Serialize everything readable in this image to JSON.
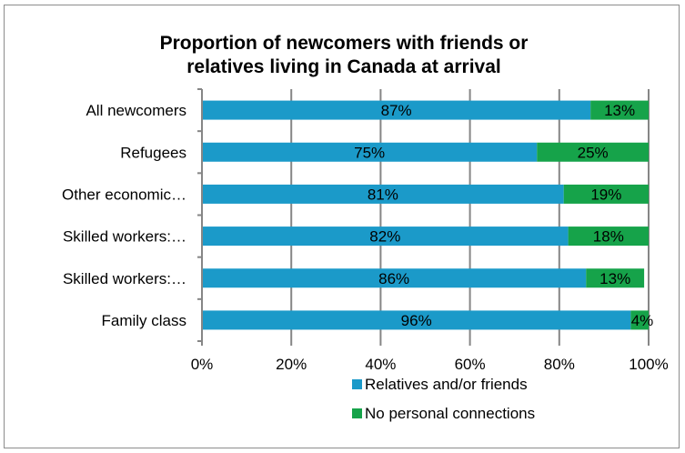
{
  "chart_data": {
    "type": "bar",
    "orientation": "horizontal",
    "stacked": "percent",
    "title_lines": [
      "Proportion of newcomers with friends or",
      "relatives living in Canada at arrival"
    ],
    "categories": [
      "All newcomers",
      "Refugees",
      "Other economic…",
      "Skilled workers:…",
      "Skilled workers:…",
      "Family class"
    ],
    "series": [
      {
        "name": "Relatives and/or friends",
        "color": "#1b9ac9",
        "values": [
          87,
          75,
          81,
          82,
          86,
          96
        ],
        "labels": [
          "87%",
          "75%",
          "81%",
          "82%",
          "86%",
          "96%"
        ]
      },
      {
        "name": "No personal connections",
        "color": "#16a34a",
        "values": [
          13,
          25,
          19,
          18,
          13,
          4
        ],
        "labels": [
          "13%",
          "25%",
          "19%",
          "18%",
          "13%",
          "4%"
        ]
      }
    ],
    "xlim": [
      0,
      100
    ],
    "x_ticks": [
      "0%",
      "20%",
      "40%",
      "60%",
      "80%",
      "100%"
    ],
    "grid": "vertical",
    "legend_position": "bottom"
  }
}
